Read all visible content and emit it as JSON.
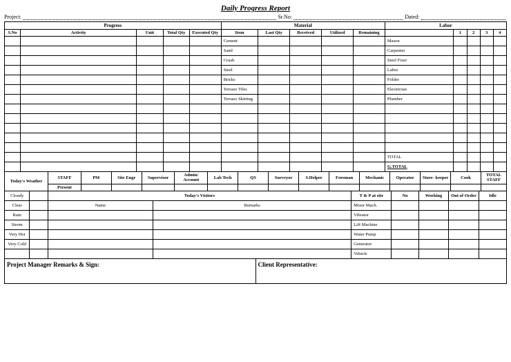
{
  "title": "Daily Progress Report",
  "header": {
    "project_label": "Project:",
    "srno_label": "Sr.No:",
    "dated_label": "Dated:"
  },
  "sections": {
    "progress": "Progress",
    "material": "Material",
    "labor": "Labor"
  },
  "progress_cols": {
    "sno": "S.No",
    "activity": "Activity",
    "unit": "Unit",
    "total_qty": "Total Qty",
    "executed_qty": "Executed Qty"
  },
  "material_cols": {
    "item": "Item",
    "last_qty": "Last Qty",
    "received": "Received",
    "utilized": "Utilized",
    "remaining": "Remaining"
  },
  "labor_cols": {
    "c1": "1",
    "c2": "2",
    "c3": "3",
    "c4": "4"
  },
  "material_items": [
    "Cement",
    "Sand",
    "Crush",
    "Steel",
    "Bricks",
    "Terrazo Tiles",
    "Terrazo Skirting"
  ],
  "labor_items": [
    "Mason",
    "Carpenter",
    "Steel Fixer",
    "Labor",
    "Folder",
    "Electrician",
    "Plumber"
  ],
  "totals": {
    "total": "TOTAL",
    "gtotal": "G.TOTAL"
  },
  "staff_row": {
    "weather": "Today's Weather",
    "staff": "STAFF",
    "pm": "PM",
    "site_engr": "Site Engr",
    "supervisor": "Supervisor",
    "admin": "Admin/ Account",
    "labtech": "Lab Tech",
    "qs": "QS",
    "surveyor": "Surveyor",
    "shelper": "S.Helper",
    "foreman": "Foreman",
    "mechanic": "Mechanic",
    "operator": "Operator",
    "storekeeper": "Store- keeper",
    "cook": "Cook",
    "total_staff": "TOTAL STAFF",
    "present": "Present"
  },
  "weather": [
    "Cloudy",
    "Clear",
    "Rain",
    "Storm",
    "Very Hot",
    "Very Cold"
  ],
  "visitors": {
    "title": "Today's Visitors",
    "name": "Name",
    "remarks": "Remarks"
  },
  "tp": {
    "title": "T & P at site",
    "no": "No",
    "working": "Working",
    "out": "Out of Order",
    "idle": "Idle"
  },
  "tp_items": [
    "Mixer Mach.",
    "Vibrator",
    "Lift Machine",
    "Water Pump",
    "Generator",
    "Vehicle"
  ],
  "footer": {
    "pm": "Project Manager Remarks & Sign:",
    "client": "Client Representative:"
  }
}
